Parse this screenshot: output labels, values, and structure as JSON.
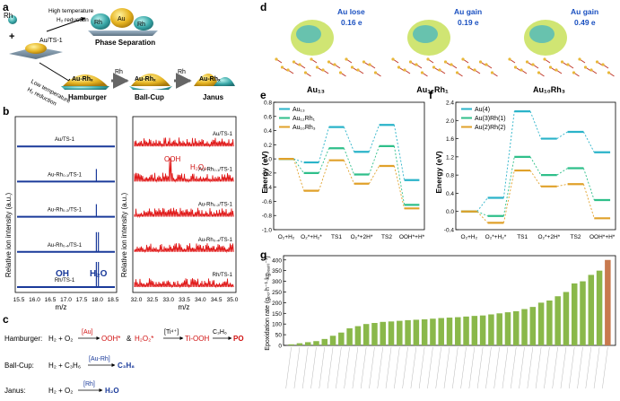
{
  "panel_labels": {
    "a": "a",
    "b": "b",
    "c": "c",
    "d": "d",
    "e": "e",
    "f": "f",
    "g": "g"
  },
  "panel_a": {
    "rh_label": "Rh",
    "plus": "+",
    "catalyst_label": "Au/TS-1",
    "high_temp": "High temperature",
    "h2_reduction_top": "H₂ reduction",
    "phase_rh": "Rh",
    "phase_au": "Au",
    "phase_rh2": "Rh",
    "phase_separation": "Phase Separation",
    "low_temp": "Low temperature",
    "h2_reduction_bottom": "H₂ reduction",
    "cluster_mid": "Au-Rhₓ",
    "cluster_right": "Au-Rhₓ",
    "rh_step1": "Rh",
    "rh_step2": "Rh",
    "hamburger": "Hamburger",
    "ballcup": "Ball-Cup",
    "janus": "Janus"
  },
  "panel_b": {
    "ylabel": "Relative ion intensity (a.u.)",
    "xlabel": "m/z",
    "left_ticks": [
      "15.5",
      "16.0",
      "16.5",
      "17.0",
      "17.5",
      "18.0",
      "18.5"
    ],
    "right_ticks": [
      "32.0",
      "32.5",
      "33.0",
      "33.5",
      "34.0",
      "34.5",
      "35.0"
    ],
    "samples": [
      "Au/TS-1",
      "Au-Rh₀.₁/TS-1",
      "Au-Rh₀.₂/TS-1",
      "Au-Rh₀.₄/TS-1",
      "Rh/TS-1"
    ],
    "oh_label": "OH",
    "h2o_label": "H₂O",
    "ooh_label": "OOH",
    "h2o2_label": "H₂O₂"
  },
  "panel_c": {
    "hamburger_label": "Hamburger:",
    "ballcup_label": "Ball-Cup:",
    "janus_label": "Janus:",
    "h2o2_reactants": "H₂ + O₂",
    "au_catalyst": "[Au]",
    "ooh_star": "OOH*",
    "amp": "&",
    "h2o2_product": "H₂O₂*",
    "ti_catalyst": "[Ti⁴⁺]",
    "ti_ooh": "Ti-OOH",
    "c3h6": "C₃H₆",
    "po": "PO",
    "ballcup_reactants": "H₂ + C₃H₆",
    "aurh_catalyst": "[Au-Rh]",
    "c3h8": "C₃H₈",
    "janus_reactants": "H₂ + O₂",
    "rh_catalyst": "[Rh]",
    "h2o": "H₂O"
  },
  "panel_d": {
    "structures": [
      {
        "name": "Au₁₃",
        "change": "Au lose",
        "value": "0.16 e"
      },
      {
        "name": "Au₁₂Rh₁",
        "change": "Au gain",
        "value": "0.19 e"
      },
      {
        "name": "Au₁₀Rh₃",
        "change": "Au gain",
        "value": "0.49 e"
      }
    ]
  },
  "panel_e": {
    "ylabel": "Energy (eV)",
    "yticks": [
      "0.8",
      "0.6",
      "0.4",
      "0.2",
      "0.0",
      "-0.2",
      "-0.4",
      "-0.6",
      "-0.8",
      "-1.0"
    ],
    "xticks": [
      "O₂+H₂",
      "O₂*+H₂*",
      "TS1",
      "O₂*+2H*",
      "TS2",
      "OOH*+H*"
    ],
    "legend": [
      "Au₁₃",
      "Au₁₂Rh₁",
      "Au₁₀Rh₃"
    ]
  },
  "panel_f": {
    "ylabel": "Energy (eV)",
    "yticks": [
      "2.4",
      "2.0",
      "1.6",
      "1.2",
      "0.8",
      "0.4",
      "0.0",
      "-0.4"
    ],
    "xticks": [
      "O₂+H₂",
      "O₂*+H₂*",
      "TS1",
      "O₂*+2H*",
      "TS2",
      "OOH*+H*"
    ],
    "legend": [
      "Au(4)",
      "Au(3)Rh(1)",
      "Au(2)Rh(2)"
    ]
  },
  "panel_g": {
    "ylabel": "Epoxidation rate (gₚₒ·h⁻¹·kg₍ₑₐₜ₎⁻¹)",
    "yticks": [
      "0",
      "50",
      "100",
      "150",
      "200",
      "250",
      "300",
      "350",
      "400"
    ]
  },
  "chart_data": [
    {
      "type": "line",
      "title": "",
      "xlabel": "",
      "ylabel": "Energy (eV)",
      "ylim": [
        -1.0,
        0.8
      ],
      "categories": [
        "O₂+H₂",
        "O₂*+H₂*",
        "TS1",
        "O₂*+2H*",
        "TS2",
        "OOH*+H*"
      ],
      "series": [
        {
          "name": "Au₁₃",
          "values": [
            0.0,
            -0.05,
            0.45,
            0.1,
            0.48,
            -0.3
          ],
          "color": "#2ab3c9"
        },
        {
          "name": "Au₁₂Rh₁",
          "values": [
            0.0,
            -0.2,
            0.15,
            -0.22,
            0.18,
            -0.65
          ],
          "color": "#2fbf8a"
        },
        {
          "name": "Au₁₀Rh₃",
          "values": [
            0.0,
            -0.45,
            -0.02,
            -0.35,
            -0.1,
            -0.7
          ],
          "color": "#e0a12a"
        }
      ]
    },
    {
      "type": "line",
      "title": "",
      "xlabel": "",
      "ylabel": "Energy (eV)",
      "ylim": [
        -0.4,
        2.4
      ],
      "categories": [
        "O₂+H₂",
        "O₂*+H₂*",
        "TS1",
        "O₂*+2H*",
        "TS2",
        "OOH*+H*"
      ],
      "series": [
        {
          "name": "Au(4)",
          "values": [
            0.0,
            0.3,
            2.2,
            1.6,
            1.75,
            1.3
          ],
          "color": "#2ab3c9"
        },
        {
          "name": "Au(3)Rh(1)",
          "values": [
            0.0,
            -0.1,
            1.2,
            0.8,
            0.95,
            0.25
          ],
          "color": "#2fbf8a"
        },
        {
          "name": "Au(2)Rh(2)",
          "values": [
            0.0,
            -0.25,
            0.9,
            0.55,
            0.6,
            -0.15
          ],
          "color": "#e0a12a"
        }
      ]
    },
    {
      "type": "bar",
      "title": "",
      "xlabel": "",
      "ylabel": "Epoxidation rate",
      "ylim": [
        0,
        420
      ],
      "values": [
        5,
        10,
        15,
        20,
        30,
        45,
        60,
        80,
        90,
        100,
        105,
        110,
        112,
        115,
        118,
        120,
        122,
        125,
        128,
        130,
        132,
        135,
        138,
        140,
        145,
        150,
        155,
        160,
        170,
        180,
        200,
        210,
        230,
        250,
        290,
        300,
        330,
        350,
        400
      ],
      "highlight_last": true,
      "colors": {
        "normal": "#8ab84a",
        "highlight": "#c87a4e"
      }
    }
  ]
}
